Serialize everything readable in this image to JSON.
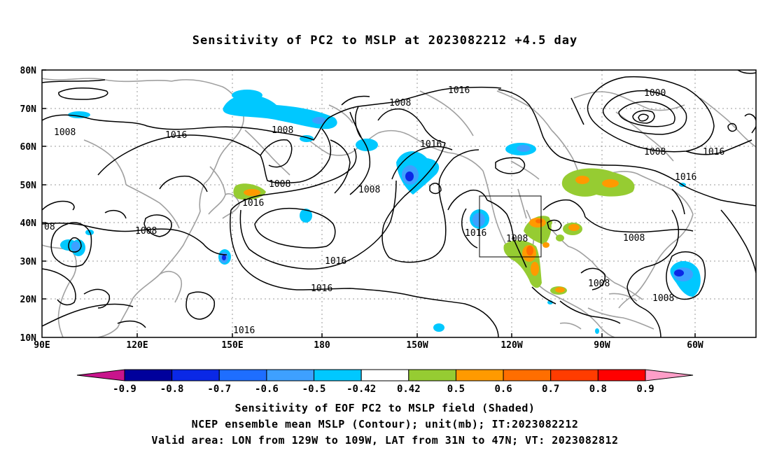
{
  "title": "Sensitivity of PC2 to MSLP at 2023082212 +4.5 day",
  "map": {
    "lat_labels": [
      "80N",
      "70N",
      "60N",
      "50N",
      "40N",
      "30N",
      "20N",
      "10N"
    ],
    "lon_labels": [
      "90E",
      "120E",
      "150E",
      "180",
      "150W",
      "120W",
      "90W",
      "60W"
    ],
    "contour_labels": {
      "c1": "1016",
      "c2": "1008",
      "c3": "1008",
      "c4": "1016",
      "c5": "1008",
      "c6": "1016",
      "c7": "1008",
      "c8": "1016",
      "c9": "1000",
      "c10": "1008",
      "c11": "1016",
      "c12": "1008",
      "c13": "08",
      "c14": "1016",
      "c15": "1016",
      "c16": "1008",
      "c17": "1008",
      "c18": "1008",
      "c19": "1016",
      "c20": "1008",
      "c21": "1016",
      "c22": "1008",
      "c23": "1016"
    },
    "colors": {
      "blue_dark": "#00009c",
      "blue_mid": "#0a28e6",
      "blue": "#1e6eff",
      "blue_light": "#3ea0ff",
      "cyan": "#00c8ff",
      "green": "#96cc32",
      "orange": "#ff9a00",
      "orange_red": "#ff6e00",
      "red_orange": "#ff3c00",
      "red": "#ff0000",
      "coast": "#a0a0a0"
    }
  },
  "colorbar": {
    "labels": [
      "-0.9",
      "-0.8",
      "-0.7",
      "-0.6",
      "-0.5",
      "-0.42",
      "0.42",
      "0.5",
      "0.6",
      "0.7",
      "0.8",
      "0.9"
    ],
    "colors": [
      "#00009c",
      "#0a28e6",
      "#1e6eff",
      "#3ea0ff",
      "#00c8ff",
      "#ffffff",
      "#96cc32",
      "#ff9a00",
      "#ff6e00",
      "#ff3c00",
      "#ff0000"
    ],
    "low_end_color": "#c8148c",
    "high_end_color": "#ff9ec8"
  },
  "footer": {
    "line1": "Sensitivity of EOF PC2 to MSLP field (Shaded)",
    "line2": "NCEP ensemble mean MSLP (Contour); unit(mb); IT:2023082212",
    "line3": "Valid area: LON from 129W to 109W, LAT from 31N to 47N; VT: 2023082812"
  }
}
